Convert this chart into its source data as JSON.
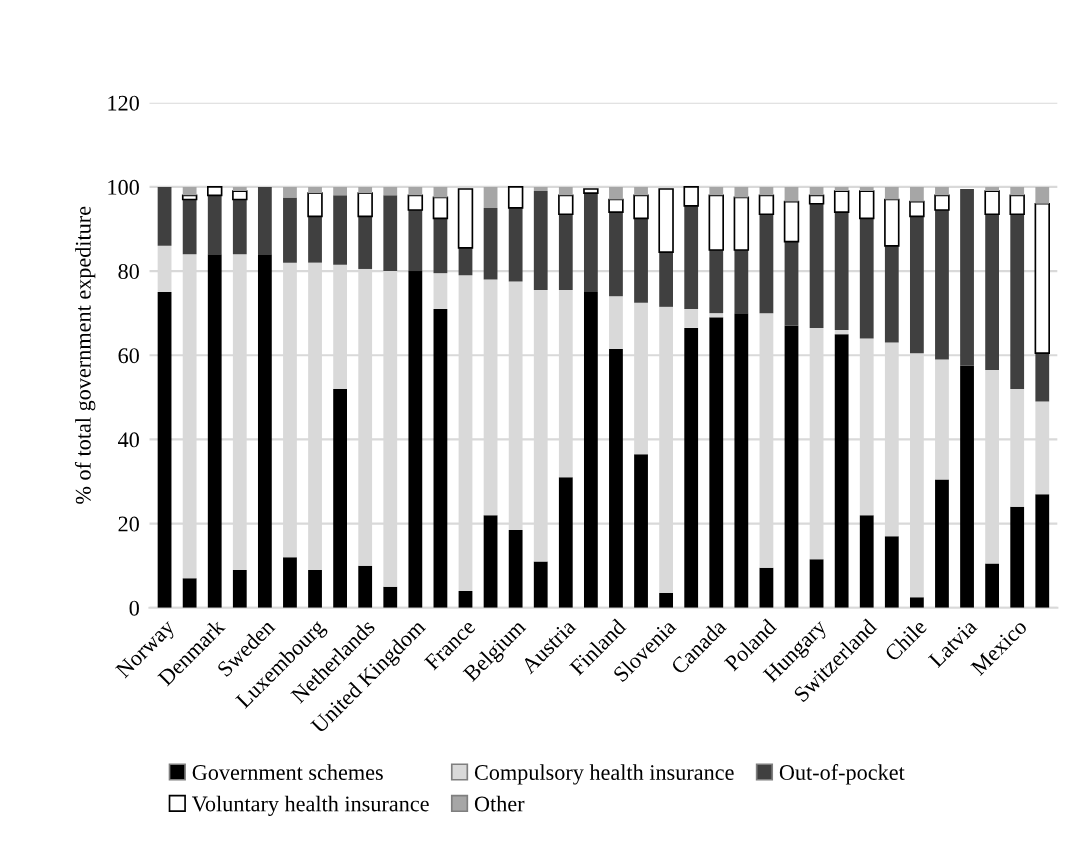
{
  "chart_data": {
    "type": "bar",
    "stacked": true,
    "ylabel": "% of total government expediture",
    "categories": [
      "Norway",
      null,
      "Denmark",
      null,
      "Sweden",
      null,
      "Luxembourg",
      null,
      "Netherlands",
      null,
      "United Kingdom",
      null,
      "France",
      null,
      "Belgium",
      null,
      "Austria",
      null,
      "Finland",
      null,
      "Slovenia",
      null,
      "Canada",
      null,
      "Poland",
      null,
      "Hungary",
      null,
      "Switzerland",
      null,
      "Chile",
      null,
      "Latvia",
      null,
      "Mexico",
      null
    ],
    "series": [
      {
        "name": "Government schemes",
        "color": "#000000",
        "values": [
          75,
          7,
          84,
          9,
          84,
          12,
          9,
          52,
          10,
          5,
          80,
          71,
          4,
          22,
          18.5,
          11,
          31,
          75,
          61.5,
          36.5,
          3.5,
          66.5,
          69,
          70,
          9.5,
          67,
          11.5,
          65,
          22,
          17,
          2.5,
          30.5,
          57.5,
          10.5,
          24,
          27
        ]
      },
      {
        "name": "Compulsory health insurance",
        "color": "#d9d9d9",
        "values": [
          11,
          77,
          0,
          75,
          0,
          70,
          73,
          29.5,
          70.5,
          75,
          0,
          8.5,
          75,
          56,
          59,
          64.5,
          44.5,
          0,
          12.5,
          36,
          68,
          4.5,
          1,
          0,
          60.5,
          0,
          55,
          1,
          42,
          46,
          58,
          28.5,
          0,
          46,
          28,
          22
        ]
      },
      {
        "name": "Out-of-pocket",
        "color": "#404040",
        "values": [
          14,
          13,
          14,
          13,
          16,
          15.5,
          11,
          16.5,
          12.5,
          18,
          14.5,
          13,
          6.5,
          17,
          17.5,
          23.5,
          18,
          23.5,
          20,
          20,
          13,
          24.5,
          15,
          15,
          23.5,
          20,
          29.5,
          28,
          28.5,
          23,
          32.5,
          35.5,
          42,
          37,
          41.5,
          11.5
        ]
      },
      {
        "name": "Voluntary health insurance",
        "color": "#ffffff",
        "values": [
          0,
          1,
          2,
          2,
          0,
          0,
          5.5,
          0,
          5.5,
          0,
          3.5,
          5,
          14,
          0,
          5,
          0,
          4.5,
          1,
          3,
          5.5,
          15,
          4.5,
          13,
          12.5,
          4.5,
          9.5,
          2,
          5,
          6.5,
          11,
          3.5,
          3.5,
          null,
          5.5,
          4.5,
          35.5
        ]
      },
      {
        "name": "Other",
        "color": "#a6a6a6",
        "values": [
          0,
          2,
          0,
          1,
          0,
          2.5,
          1.5,
          2,
          1.5,
          2,
          2,
          2.5,
          null,
          5,
          0,
          1,
          2,
          null,
          3,
          2,
          null,
          0,
          2,
          2.5,
          2,
          3.5,
          2,
          1,
          1,
          3,
          3.5,
          2,
          0,
          1,
          2,
          4
        ]
      }
    ],
    "ylim": [
      0,
      120
    ],
    "yticks": [
      0,
      20,
      40,
      60,
      80,
      100,
      120
    ],
    "grid": "y",
    "legend": "bottom"
  }
}
